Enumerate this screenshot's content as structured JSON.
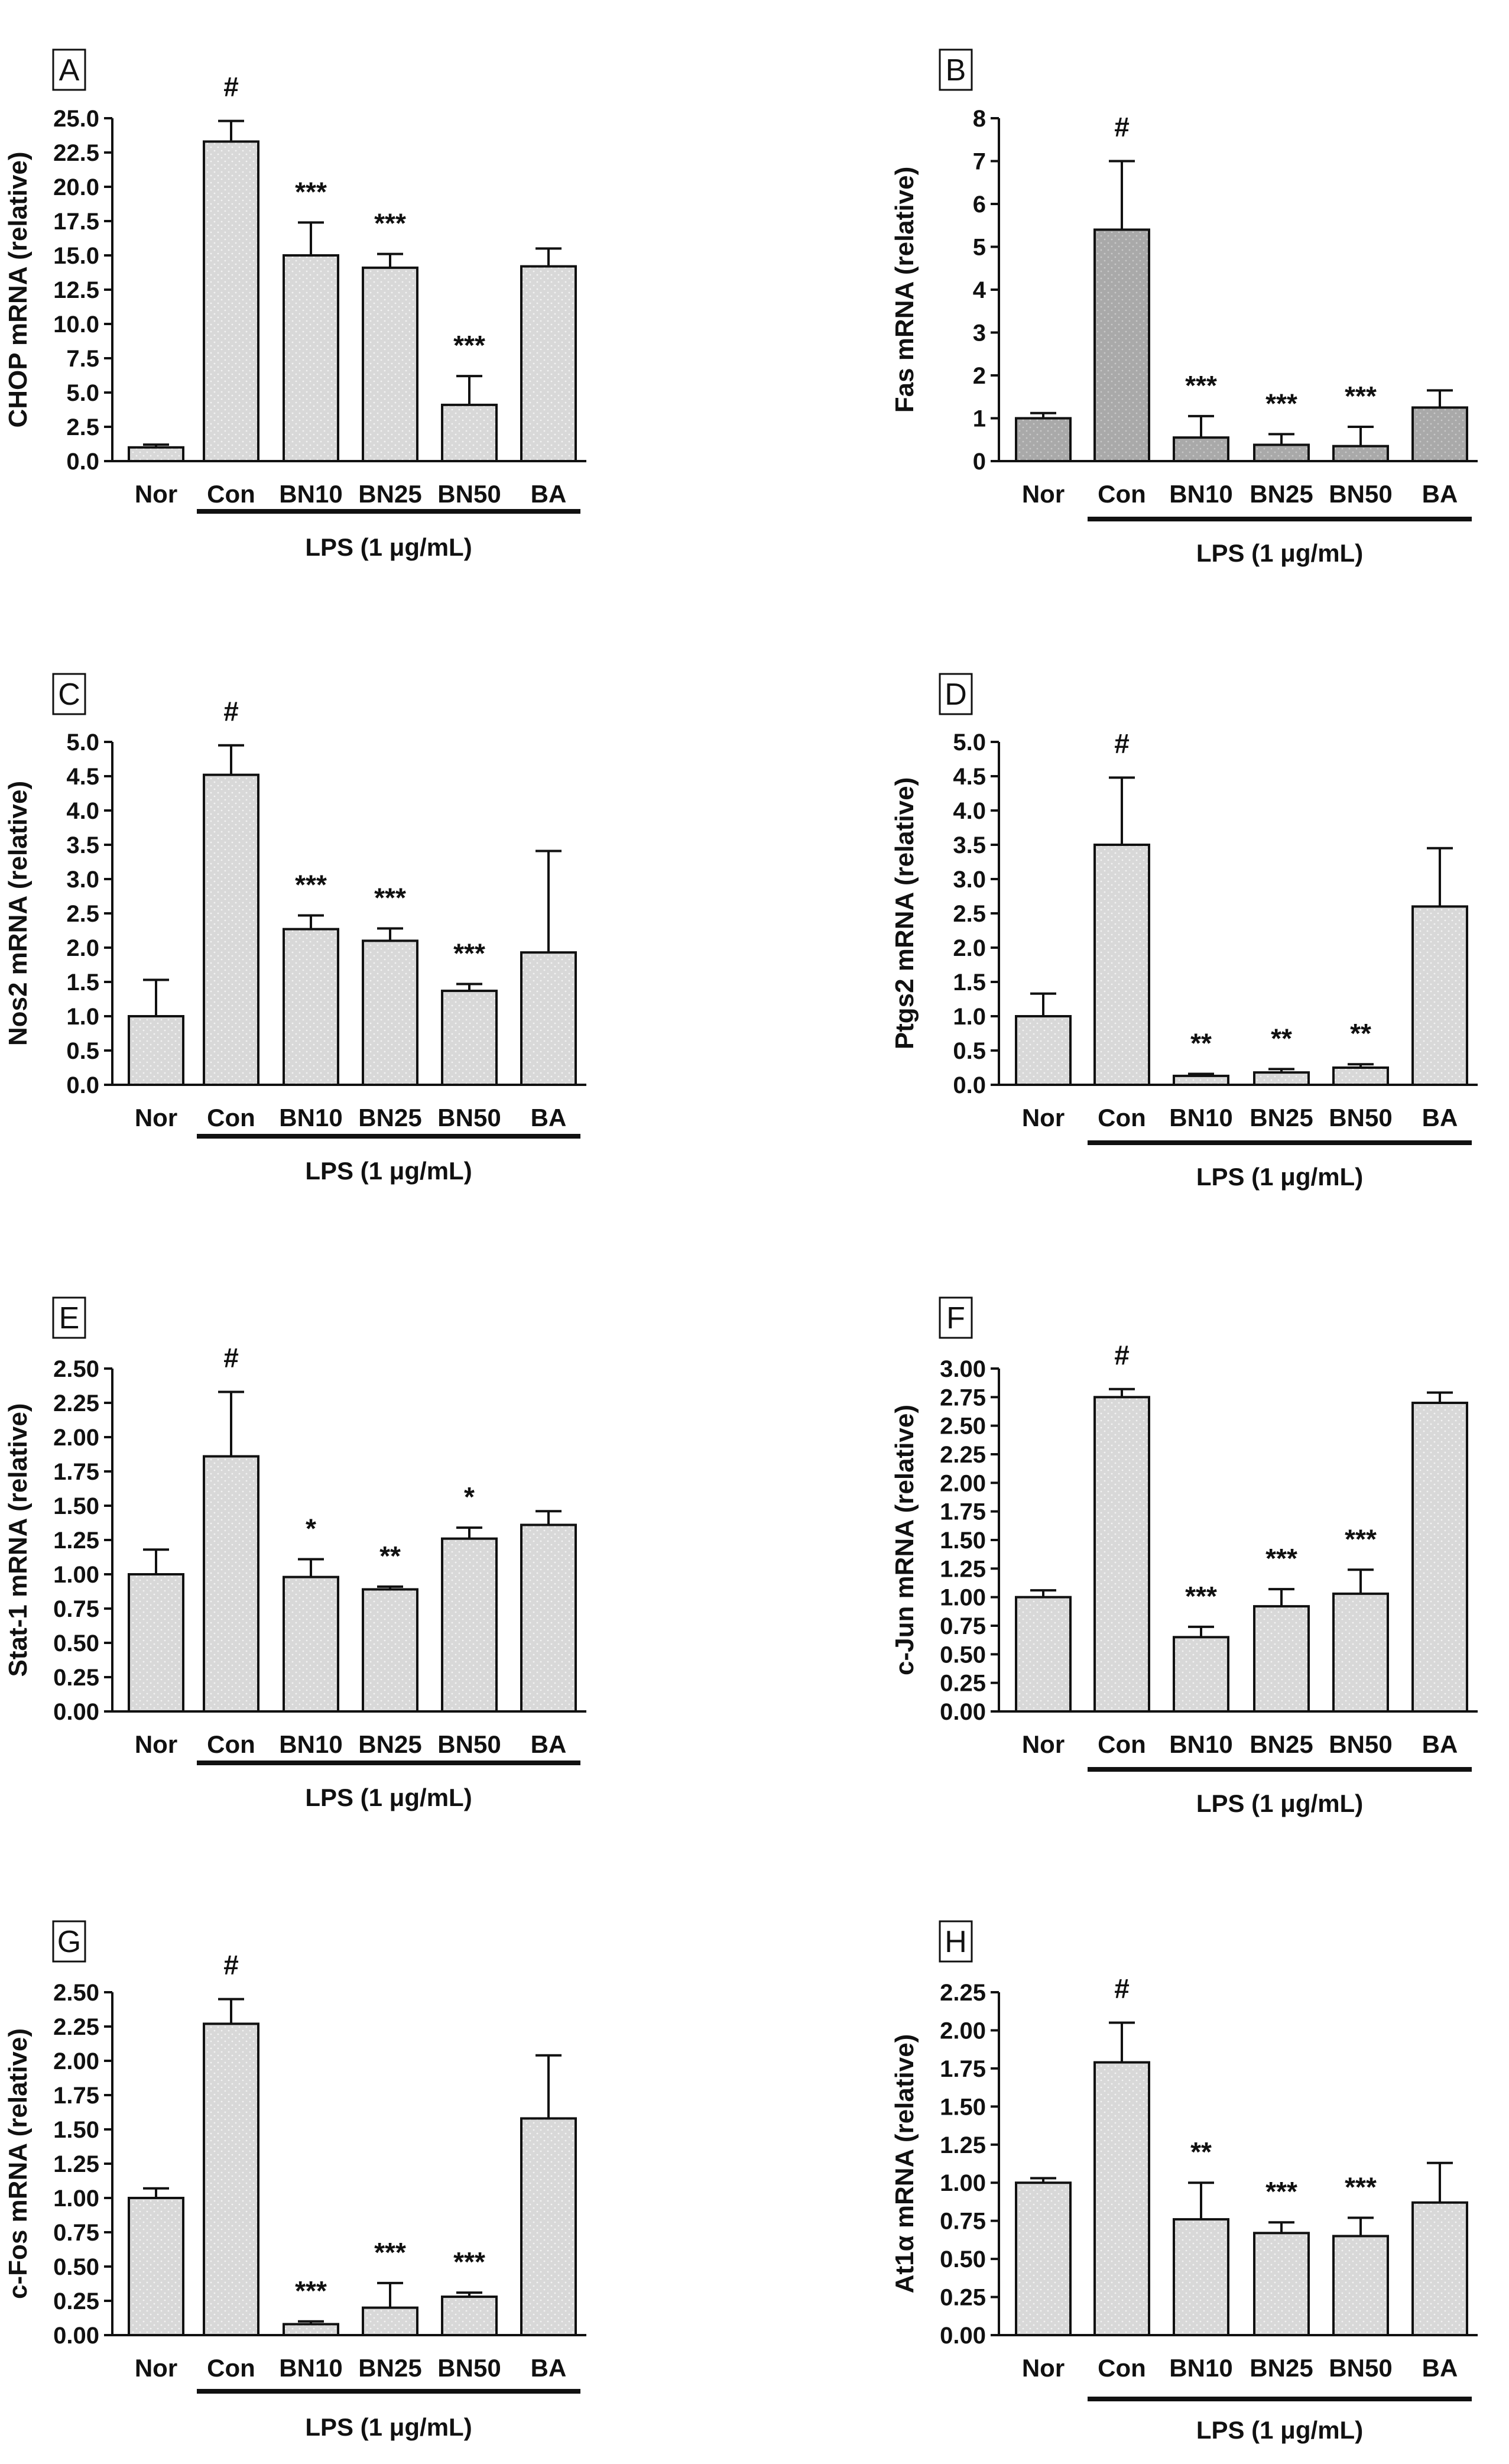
{
  "figure": {
    "group_label": "LPS (1 μg/mL)",
    "colors": {
      "bar_light": "#d8d8d8",
      "bar_dark": "#a9a9a9",
      "stroke": "#111111",
      "dot": "#f3f3f3"
    }
  },
  "chart_data": [
    {
      "panel": "A",
      "type": "bar",
      "ylabel": "CHOP mRNA (relative)",
      "categories": [
        "Nor",
        "Con",
        "BN10",
        "BN25",
        "BN50",
        "BA"
      ],
      "values": [
        1.0,
        23.3,
        15.0,
        14.1,
        4.1,
        14.2
      ],
      "errors": [
        0.2,
        1.5,
        2.4,
        1.0,
        2.1,
        1.3
      ],
      "significance": [
        "",
        "#",
        "***",
        "***",
        "***",
        ""
      ],
      "ylim": [
        0,
        25
      ],
      "ticks": [
        "0.0",
        "2.5",
        "5.0",
        "7.5",
        "10.0",
        "12.5",
        "15.0",
        "17.5",
        "20.0",
        "22.5",
        "25.0"
      ],
      "shade": "light"
    },
    {
      "panel": "B",
      "type": "bar",
      "ylabel": "Fas mRNA (relative)",
      "categories": [
        "Nor",
        "Con",
        "BN10",
        "BN25",
        "BN50",
        "BA"
      ],
      "values": [
        1.0,
        5.4,
        0.55,
        0.38,
        0.35,
        1.25
      ],
      "errors": [
        0.12,
        1.6,
        0.5,
        0.25,
        0.45,
        0.4
      ],
      "significance": [
        "",
        "#",
        "***",
        "***",
        "***",
        ""
      ],
      "ylim": [
        0,
        8
      ],
      "ticks": [
        "0",
        "1",
        "2",
        "3",
        "4",
        "5",
        "6",
        "7",
        "8"
      ],
      "shade": "dark"
    },
    {
      "panel": "C",
      "type": "bar",
      "ylabel": "Nos2 mRNA (relative)",
      "categories": [
        "Nor",
        "Con",
        "BN10",
        "BN25",
        "BN50",
        "BA"
      ],
      "values": [
        1.0,
        4.52,
        2.27,
        2.1,
        1.37,
        1.93
      ],
      "errors": [
        0.53,
        0.43,
        0.2,
        0.18,
        0.1,
        1.48
      ],
      "significance": [
        "",
        "#",
        "***",
        "***",
        "***",
        ""
      ],
      "ylim": [
        0,
        5
      ],
      "ticks": [
        "0.0",
        "0.5",
        "1.0",
        "1.5",
        "2.0",
        "2.5",
        "3.0",
        "3.5",
        "4.0",
        "4.5",
        "5.0"
      ],
      "shade": "light"
    },
    {
      "panel": "D",
      "type": "bar",
      "ylabel": "Ptgs2 mRNA (relative)",
      "categories": [
        "Nor",
        "Con",
        "BN10",
        "BN25",
        "BN50",
        "BA"
      ],
      "values": [
        1.0,
        3.5,
        0.13,
        0.18,
        0.25,
        2.6
      ],
      "errors": [
        0.33,
        0.98,
        0.03,
        0.05,
        0.05,
        0.85
      ],
      "significance": [
        "",
        "#",
        "**",
        "**",
        "**",
        ""
      ],
      "ylim": [
        0,
        5
      ],
      "ticks": [
        "0.0",
        "0.5",
        "1.0",
        "1.5",
        "2.0",
        "2.5",
        "3.0",
        "3.5",
        "4.0",
        "4.5",
        "5.0"
      ],
      "shade": "light"
    },
    {
      "panel": "E",
      "type": "bar",
      "ylabel": "Stat-1 mRNA (relative)",
      "categories": [
        "Nor",
        "Con",
        "BN10",
        "BN25",
        "BN50",
        "BA"
      ],
      "values": [
        1.0,
        1.86,
        0.98,
        0.89,
        1.26,
        1.36
      ],
      "errors": [
        0.18,
        0.47,
        0.13,
        0.02,
        0.08,
        0.1
      ],
      "significance": [
        "",
        "#",
        "*",
        "**",
        "*",
        ""
      ],
      "ylim": [
        0,
        2.5
      ],
      "ticks": [
        "0.00",
        "0.25",
        "0.50",
        "0.75",
        "1.00",
        "1.25",
        "1.50",
        "1.75",
        "2.00",
        "2.25",
        "2.50"
      ],
      "shade": "light"
    },
    {
      "panel": "F",
      "type": "bar",
      "ylabel": "c-Jun mRNA (relative)",
      "categories": [
        "Nor",
        "Con",
        "BN10",
        "BN25",
        "BN50",
        "BA"
      ],
      "values": [
        1.0,
        2.75,
        0.65,
        0.92,
        1.03,
        2.7
      ],
      "errors": [
        0.06,
        0.07,
        0.09,
        0.15,
        0.21,
        0.09
      ],
      "significance": [
        "",
        "#",
        "***",
        "***",
        "***",
        ""
      ],
      "ylim": [
        0,
        3
      ],
      "ticks": [
        "0.00",
        "0.25",
        "0.50",
        "0.75",
        "1.00",
        "1.25",
        "1.50",
        "1.75",
        "2.00",
        "2.25",
        "2.50",
        "2.75",
        "3.00"
      ],
      "shade": "light"
    },
    {
      "panel": "G",
      "type": "bar",
      "ylabel": "c-Fos mRNA (relative)",
      "categories": [
        "Nor",
        "Con",
        "BN10",
        "BN25",
        "BN50",
        "BA"
      ],
      "values": [
        1.0,
        2.27,
        0.08,
        0.2,
        0.28,
        1.58
      ],
      "errors": [
        0.07,
        0.18,
        0.02,
        0.18,
        0.03,
        0.46
      ],
      "significance": [
        "",
        "#",
        "***",
        "***",
        "***",
        ""
      ],
      "ylim": [
        0,
        2.5
      ],
      "ticks": [
        "0.00",
        "0.25",
        "0.50",
        "0.75",
        "1.00",
        "1.25",
        "1.50",
        "1.75",
        "2.00",
        "2.25",
        "2.50"
      ],
      "shade": "light"
    },
    {
      "panel": "H",
      "type": "bar",
      "ylabel": "At1α mRNA (relative)",
      "categories": [
        "Nor",
        "Con",
        "BN10",
        "BN25",
        "BN50",
        "BA"
      ],
      "values": [
        1.0,
        1.79,
        0.76,
        0.67,
        0.65,
        0.87
      ],
      "errors": [
        0.03,
        0.26,
        0.24,
        0.07,
        0.12,
        0.26
      ],
      "significance": [
        "",
        "#",
        "**",
        "***",
        "***",
        ""
      ],
      "ylim": [
        0,
        2.25
      ],
      "ticks": [
        "0.00",
        "0.25",
        "0.50",
        "0.75",
        "1.00",
        "1.25",
        "1.50",
        "1.75",
        "2.00",
        "2.25"
      ],
      "shade": "light"
    }
  ]
}
